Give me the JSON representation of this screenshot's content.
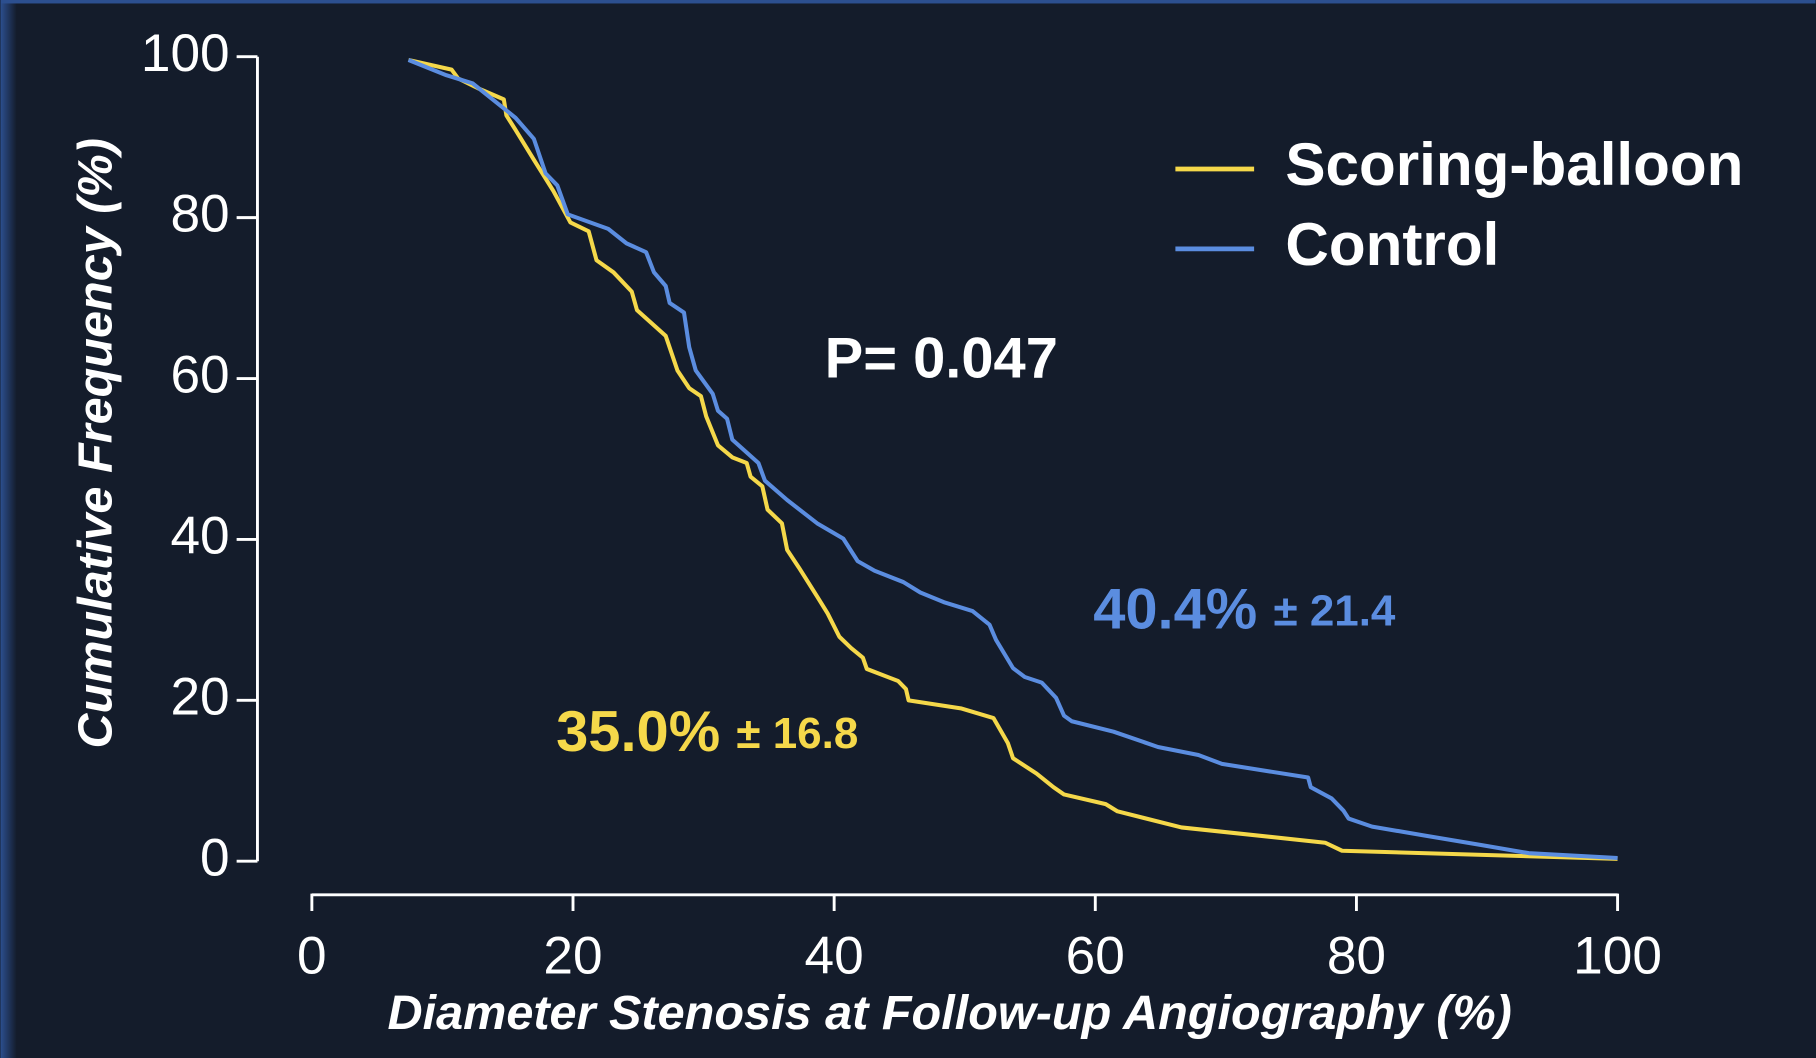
{
  "chart_data": {
    "type": "line",
    "xlabel": "Diameter Stenosis at Follow-up Angiography (%)",
    "ylabel": "Cumulative Frequency (%)",
    "xlim": [
      0,
      100
    ],
    "xticks": [
      0,
      20,
      40,
      60,
      80,
      100
    ],
    "ylim": [
      0,
      100
    ],
    "yticks": [
      0,
      20,
      40,
      60,
      80,
      100
    ],
    "legend": "upper right",
    "series": [
      {
        "name": "Scoring-balloon",
        "color": "#f5d84a",
        "x": [
          7.4,
          10.7,
          11.2,
          12.7,
          14.7,
          14.9,
          15.6,
          17.0,
          18.5,
          19.2,
          19.8,
          21.2,
          21.8,
          23.1,
          24.5,
          24.9,
          27.1,
          28.0,
          28.9,
          29.8,
          30.2,
          31.1,
          32.2,
          33.3,
          33.6,
          34.5,
          34.9,
          36.0,
          36.4,
          37.3,
          38.7,
          39.5,
          40.4,
          41.3,
          42.2,
          42.5,
          44.9,
          45.5,
          45.7,
          49.7,
          52.2,
          53.3,
          53.7,
          55.5,
          56.8,
          57.6,
          60.8,
          61.7,
          66.6,
          77.6,
          78.9,
          100
        ],
        "values": [
          99.6,
          98.4,
          97.3,
          96.1,
          94.7,
          92.7,
          90.9,
          87.2,
          83.3,
          81.2,
          79.4,
          78.3,
          74.7,
          73.2,
          70.8,
          68.5,
          65.3,
          61.0,
          58.8,
          57.8,
          55.3,
          51.7,
          50.2,
          49.5,
          47.8,
          46.6,
          43.7,
          42.0,
          38.7,
          36.5,
          32.9,
          30.8,
          27.9,
          26.5,
          25.3,
          23.9,
          22.4,
          21.4,
          20.0,
          19.0,
          17.8,
          14.7,
          12.8,
          10.9,
          9.2,
          8.3,
          7.1,
          6.2,
          4.2,
          2.3,
          1.3,
          0.3
        ]
      },
      {
        "name": "Control",
        "color": "#5b8de0",
        "x": [
          7.4,
          10.3,
          12.3,
          14.3,
          15.6,
          17.0,
          17.9,
          18.8,
          19.6,
          22.7,
          24.1,
          25.6,
          26.2,
          27.1,
          27.4,
          28.5,
          28.9,
          29.4,
          30.7,
          31.1,
          31.8,
          32.2,
          34.2,
          34.7,
          36.4,
          38.7,
          40.7,
          41.8,
          43.1,
          45.3,
          46.6,
          48.4,
          50.6,
          51.9,
          52.4,
          53.7,
          54.6,
          55.9,
          57.0,
          57.6,
          58.2,
          61.4,
          64.8,
          67.9,
          69.7,
          76.3,
          76.5,
          78.1,
          79.0,
          79.4,
          81.2,
          85.2,
          89.6,
          93.2,
          100
        ],
        "values": [
          99.6,
          97.7,
          96.7,
          94.1,
          92.4,
          89.8,
          85.5,
          84.0,
          80.4,
          78.6,
          76.8,
          75.7,
          73.2,
          71.5,
          69.4,
          68.2,
          63.9,
          61.0,
          58.1,
          56.0,
          55.0,
          52.4,
          49.5,
          47.3,
          44.9,
          42.0,
          40.1,
          37.3,
          36.1,
          34.7,
          33.4,
          32.2,
          31.1,
          29.4,
          27.5,
          24.0,
          22.9,
          22.2,
          20.3,
          18.1,
          17.4,
          16.1,
          14.2,
          13.2,
          12.1,
          10.4,
          9.2,
          7.8,
          6.3,
          5.3,
          4.3,
          3.2,
          2.0,
          1.0,
          0.4
        ]
      }
    ],
    "annotations": [
      {
        "text": "P= 0.047",
        "color": "#ffffff"
      },
      {
        "text": "35.0%",
        "sub": "± 16.8",
        "color": "#f5d84a"
      },
      {
        "text": "40.4%",
        "sub": "± 21.4",
        "color": "#5b8de0"
      }
    ]
  }
}
